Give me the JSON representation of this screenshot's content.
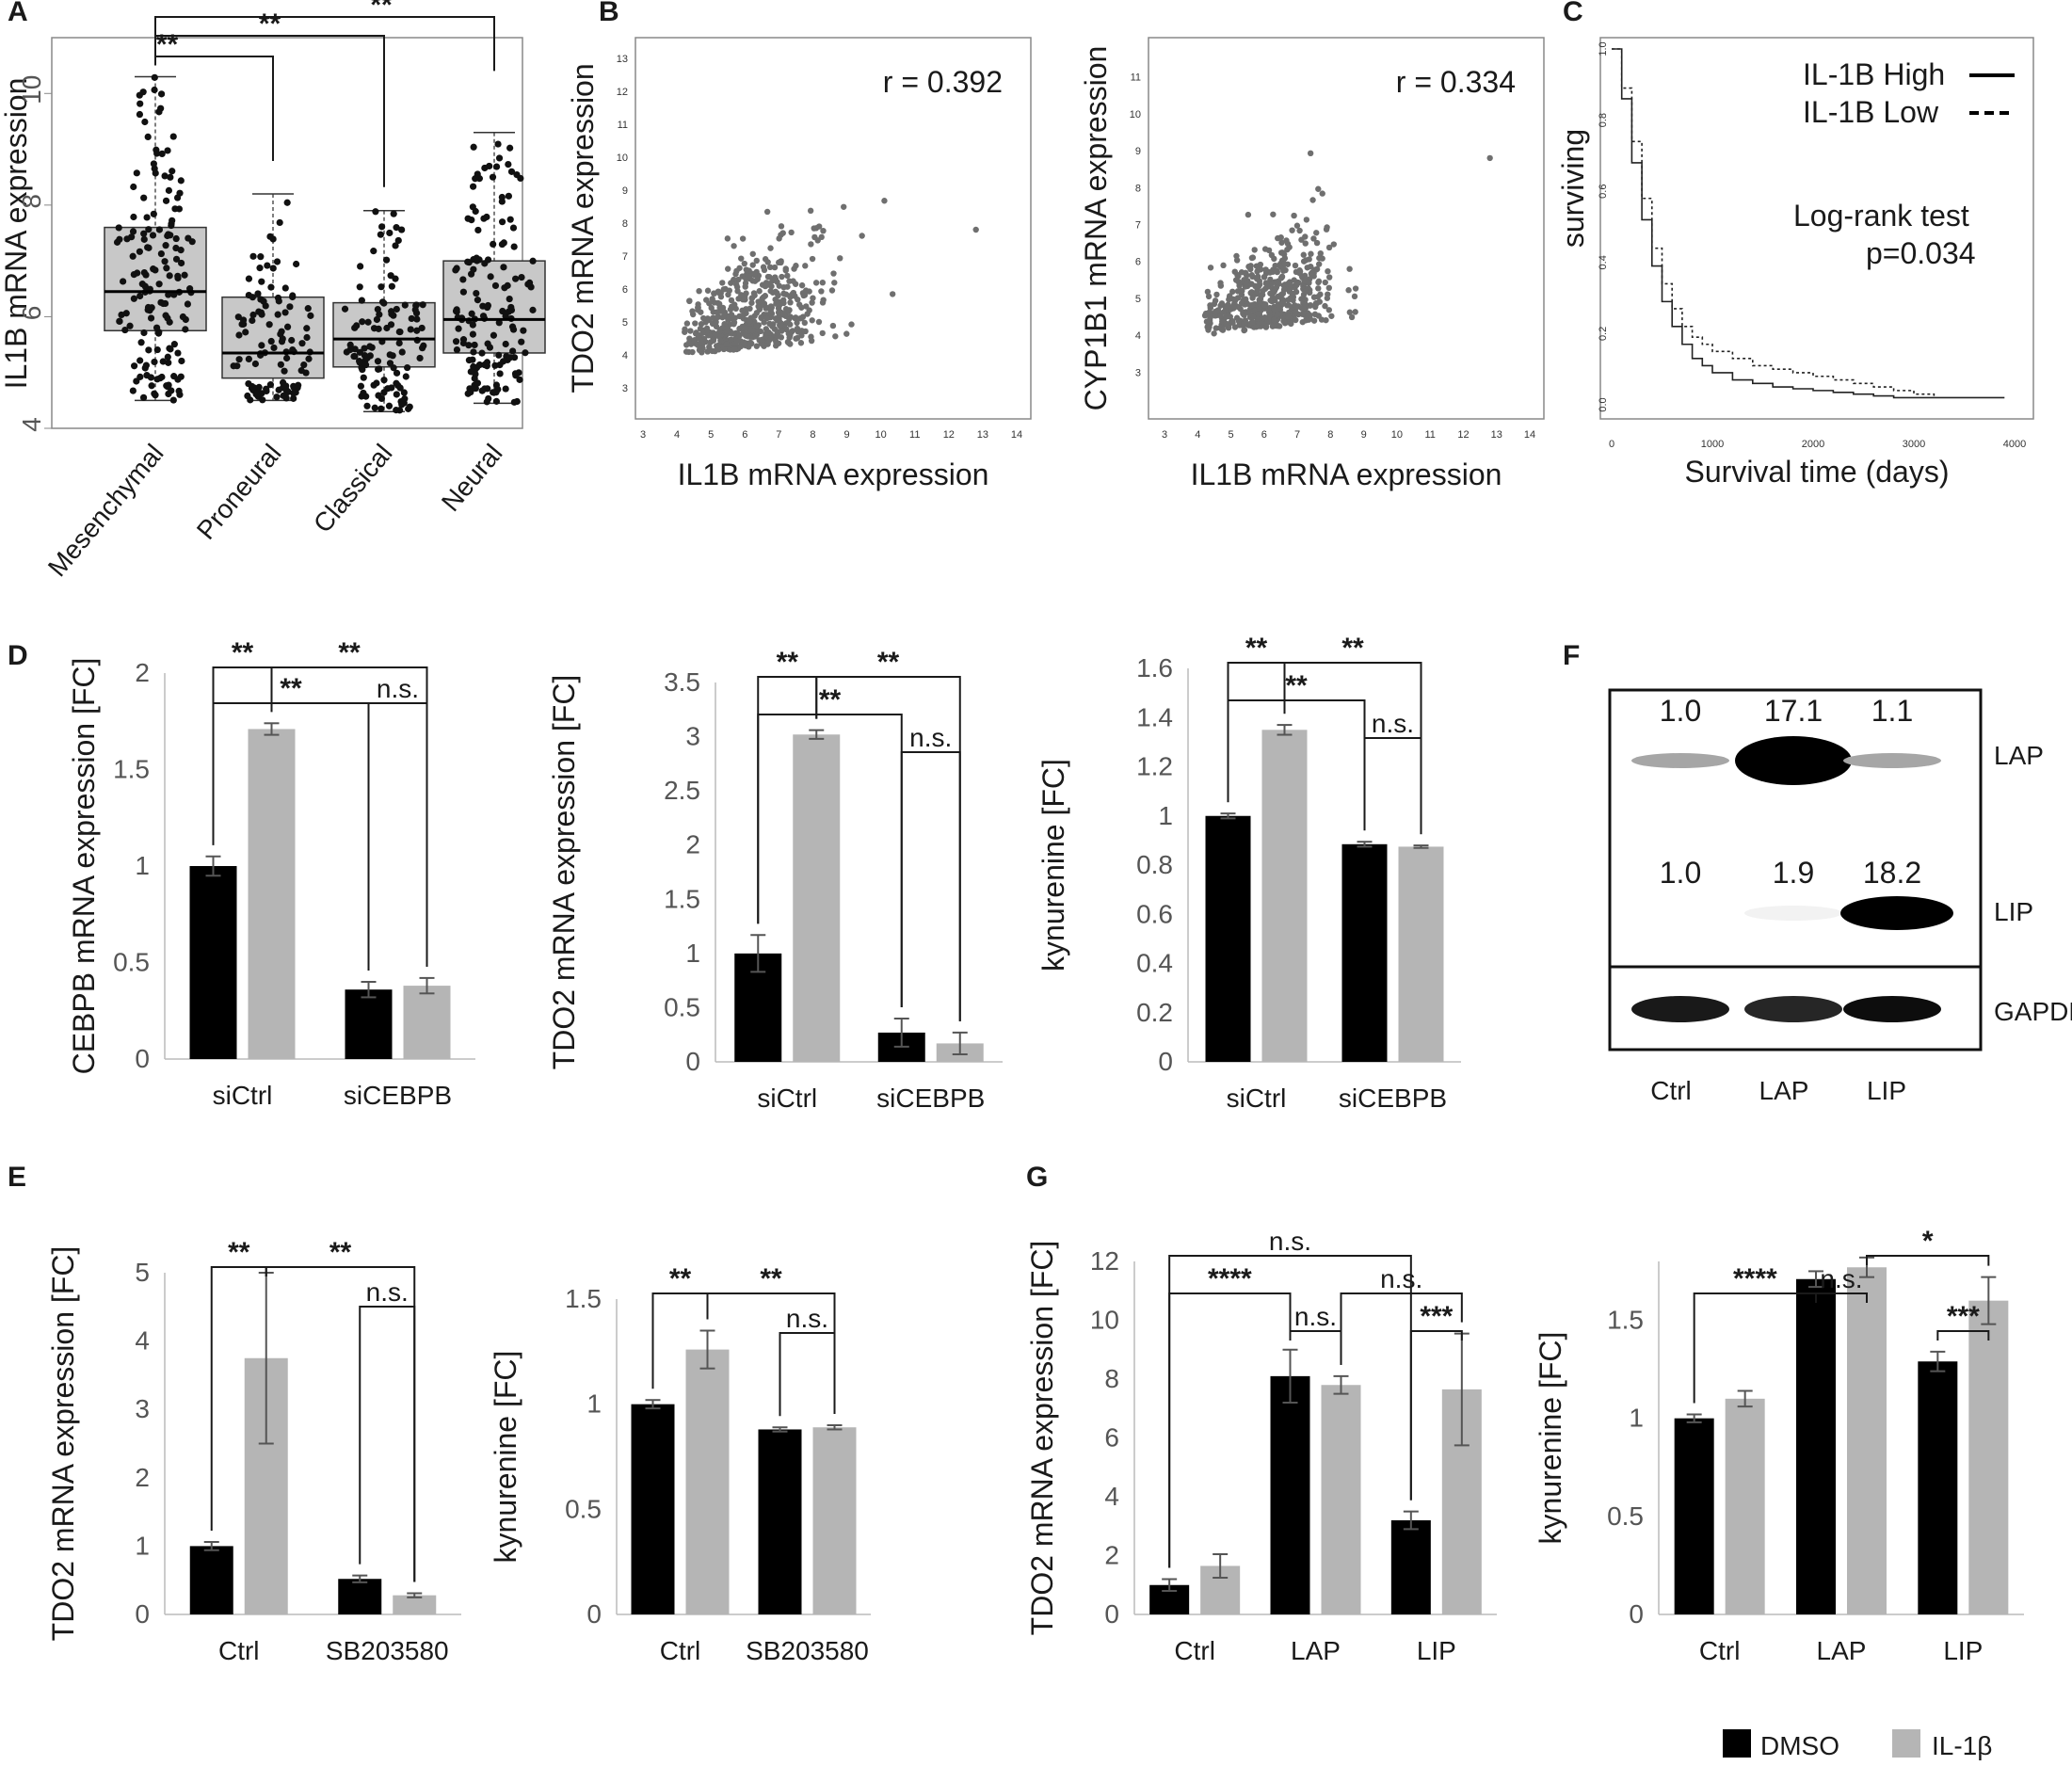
{
  "panel_labels": [
    "A",
    "B",
    "C",
    "D",
    "E",
    "F",
    "G"
  ],
  "colors": {
    "dmso": "#000000",
    "il1b": "#b5b5b5",
    "box": "#c8c8c8",
    "scatter": "#6f6f6f",
    "bracket": "#1a1a1a"
  },
  "legend": {
    "dmso": "DMSO",
    "il1b": "IL-1β"
  },
  "chart_data": [
    {
      "id": "A",
      "type": "box",
      "ylabel": "IL1B mRNA expression",
      "ylim": [
        4,
        11
      ],
      "yticks": [
        4,
        6,
        8,
        10
      ],
      "categories": [
        "Mesenchymal",
        "Proneural",
        "Classical",
        "Neural"
      ],
      "boxes": [
        {
          "category": "Mesenchymal",
          "min": 4.5,
          "q1": 5.75,
          "median": 6.45,
          "q3": 7.6,
          "max": 10.3,
          "n": 155
        },
        {
          "category": "Proneural",
          "min": 4.5,
          "q1": 4.9,
          "median": 5.35,
          "q3": 6.35,
          "max": 8.2,
          "n": 110
        },
        {
          "category": "Classical",
          "min": 4.3,
          "q1": 5.1,
          "median": 5.6,
          "q3": 6.25,
          "max": 7.9,
          "n": 115
        },
        {
          "category": "Neural",
          "min": 4.45,
          "q1": 5.35,
          "median": 5.95,
          "q3": 7.0,
          "max": 9.3,
          "n": 150
        }
      ],
      "significance": [
        {
          "from": "Mesenchymal",
          "to": "Neural",
          "label": "**"
        },
        {
          "from": "Mesenchymal",
          "to": "Classical",
          "label": "**"
        },
        {
          "from": "Mesenchymal",
          "to": "Proneural",
          "label": "**"
        }
      ]
    },
    {
      "id": "B1",
      "type": "scatter",
      "annotation": "r = 0.392",
      "xlabel": "IL1B mRNA expression",
      "ylabel": "TDO2 mRNA expression",
      "xlim": [
        3,
        14
      ],
      "ylim": [
        3,
        13
      ],
      "xticks": [
        3,
        4,
        5,
        6,
        7,
        8,
        9,
        10,
        11,
        12,
        13,
        14
      ],
      "yticks": [
        3,
        4,
        5,
        6,
        7,
        8,
        9,
        10,
        11,
        12,
        13
      ],
      "n_points": 520,
      "seed": 7,
      "r": 0.392,
      "x_mean": 6.2,
      "x_sd": 1.3,
      "y_base": 4.0,
      "y_spread": 3.6
    },
    {
      "id": "B2",
      "type": "scatter",
      "annotation": "r = 0.334",
      "xlabel": "IL1B mRNA expression",
      "ylabel": "CYP1B1 mRNA expression",
      "xlim": [
        3,
        14
      ],
      "ylim": [
        2.5,
        11.5
      ],
      "xticks": [
        3,
        4,
        5,
        6,
        7,
        8,
        9,
        10,
        11,
        12,
        13,
        14
      ],
      "yticks": [
        3,
        4,
        5,
        6,
        7,
        8,
        9,
        10,
        11
      ],
      "n_points": 520,
      "seed": 13,
      "r": 0.334,
      "x_mean": 6.3,
      "x_sd": 1.2,
      "y_base": 4.0,
      "y_spread": 3.2
    },
    {
      "id": "C",
      "type": "line",
      "xlabel": "Survival time (days)",
      "ylabel": "surviving",
      "xlim": [
        0,
        4000
      ],
      "ylim": [
        0,
        1.0
      ],
      "xticks": [
        0,
        1000,
        2000,
        3000,
        4000
      ],
      "yticks": [
        0.0,
        0.2,
        0.4,
        0.6,
        0.8,
        1.0
      ],
      "legend": [
        "IL-1B High",
        "IL-1B Low"
      ],
      "annotation_title": "Log-rank test",
      "annotation_p": "p=0.034",
      "series": [
        {
          "name": "IL-1B High",
          "style": "solid",
          "x": [
            0,
            100,
            200,
            300,
            400,
            500,
            600,
            700,
            800,
            900,
            1000,
            1200,
            1400,
            1600,
            1800,
            2000,
            2200,
            2400,
            2600,
            2800,
            3000,
            3300,
            3600,
            3900
          ],
          "y": [
            1.0,
            0.86,
            0.68,
            0.52,
            0.39,
            0.29,
            0.22,
            0.17,
            0.13,
            0.11,
            0.09,
            0.07,
            0.06,
            0.05,
            0.045,
            0.04,
            0.035,
            0.03,
            0.025,
            0.02,
            0.02,
            0.02,
            0.02,
            0.02
          ]
        },
        {
          "name": "IL-1B Low",
          "style": "dashed",
          "x": [
            0,
            100,
            200,
            300,
            400,
            500,
            600,
            700,
            800,
            900,
            1000,
            1200,
            1400,
            1600,
            1800,
            2000,
            2200,
            2400,
            2600,
            2800,
            3000,
            3200
          ],
          "y": [
            1.0,
            0.89,
            0.74,
            0.58,
            0.44,
            0.34,
            0.27,
            0.22,
            0.19,
            0.17,
            0.15,
            0.13,
            0.11,
            0.1,
            0.09,
            0.08,
            0.07,
            0.06,
            0.05,
            0.04,
            0.03,
            0.02
          ]
        }
      ]
    },
    {
      "id": "D1",
      "type": "bar",
      "ylabel": "CEBPB mRNA expression [FC]",
      "ylim": [
        0,
        2
      ],
      "yticks": [
        0,
        0.5,
        1,
        1.5,
        2
      ],
      "ytick_labels": [
        "0",
        "0.5",
        "1",
        "1.5",
        "2"
      ],
      "categories": [
        "siCtrl",
        "siCEBPB"
      ],
      "series": [
        {
          "name": "DMSO",
          "values": [
            1.0,
            0.36
          ],
          "errors": [
            0.05,
            0.04
          ]
        },
        {
          "name": "IL-1β",
          "values": [
            1.71,
            0.38
          ],
          "errors": [
            0.03,
            0.04
          ]
        }
      ],
      "significance": [
        {
          "a": [
            0,
            0
          ],
          "b": [
            0,
            1
          ],
          "label": "**",
          "level": 1
        },
        {
          "a": [
            0,
            0
          ],
          "b": [
            1,
            0
          ],
          "label": "**",
          "level": 0
        },
        {
          "a": [
            0,
            1
          ],
          "b": [
            1,
            1
          ],
          "label": "**",
          "level": 1
        },
        {
          "a": [
            1,
            0
          ],
          "b": [
            1,
            1
          ],
          "label": "n.s.",
          "level": 0
        }
      ]
    },
    {
      "id": "D2",
      "type": "bar",
      "ylabel": "TDO2 mRNA expression [FC]",
      "ylim": [
        0,
        3.5
      ],
      "yticks": [
        0,
        0.5,
        1,
        1.5,
        2,
        2.5,
        3,
        3.5
      ],
      "ytick_labels": [
        "0",
        "0.5",
        "1",
        "1.5",
        "2",
        "2.5",
        "3",
        "3.5"
      ],
      "categories": [
        "siCtrl",
        "siCEBPB"
      ],
      "series": [
        {
          "name": "DMSO",
          "values": [
            1.0,
            0.27
          ],
          "errors": [
            0.17,
            0.13
          ]
        },
        {
          "name": "IL-1β",
          "values": [
            3.02,
            0.17
          ],
          "errors": [
            0.04,
            0.1
          ]
        }
      ],
      "significance": [
        {
          "a": [
            0,
            0
          ],
          "b": [
            0,
            1
          ],
          "label": "**",
          "level": 2
        },
        {
          "a": [
            0,
            0
          ],
          "b": [
            1,
            0
          ],
          "label": "**",
          "level": 1
        },
        {
          "a": [
            0,
            1
          ],
          "b": [
            1,
            1
          ],
          "label": "**",
          "level": 2
        },
        {
          "a": [
            1,
            0
          ],
          "b": [
            1,
            1
          ],
          "label": "n.s.",
          "level": 0
        }
      ]
    },
    {
      "id": "D3",
      "type": "bar",
      "ylabel": "kynurenine [FC]",
      "ylim": [
        0,
        1.6
      ],
      "yticks": [
        0,
        0.2,
        0.4,
        0.6,
        0.8,
        1,
        1.2,
        1.4,
        1.6
      ],
      "ytick_labels": [
        "0",
        "0.2",
        "0.4",
        "0.6",
        "0.8",
        "1",
        "1.2",
        "1.4",
        "1.6"
      ],
      "categories": [
        "siCtrl",
        "siCEBPB"
      ],
      "series": [
        {
          "name": "DMSO",
          "values": [
            1.0,
            0.885
          ],
          "errors": [
            0.01,
            0.01
          ]
        },
        {
          "name": "IL-1β",
          "values": [
            1.35,
            0.875
          ],
          "errors": [
            0.02,
            0.005
          ]
        }
      ],
      "significance": [
        {
          "a": [
            0,
            0
          ],
          "b": [
            0,
            1
          ],
          "label": "**",
          "level": 2
        },
        {
          "a": [
            0,
            0
          ],
          "b": [
            1,
            0
          ],
          "label": "**",
          "level": 1
        },
        {
          "a": [
            0,
            1
          ],
          "b": [
            1,
            1
          ],
          "label": "**",
          "level": 2
        },
        {
          "a": [
            1,
            0
          ],
          "b": [
            1,
            1
          ],
          "label": "n.s.",
          "level": 0
        }
      ]
    },
    {
      "id": "E1",
      "type": "bar",
      "ylabel": "TDO2 mRNA expression [FC]",
      "ylim": [
        0,
        5
      ],
      "yticks": [
        0,
        1,
        2,
        3,
        4,
        5
      ],
      "ytick_labels": [
        "0",
        "1",
        "2",
        "3",
        "4",
        "5"
      ],
      "categories": [
        "Ctrl",
        "SB203580"
      ],
      "series": [
        {
          "name": "DMSO",
          "values": [
            1.0,
            0.52
          ],
          "errors": [
            0.06,
            0.05
          ]
        },
        {
          "name": "IL-1β",
          "values": [
            3.75,
            0.28
          ],
          "errors": [
            1.25,
            0.03
          ]
        }
      ],
      "significance": [
        {
          "a": [
            0,
            0
          ],
          "b": [
            0,
            1
          ],
          "label": "**",
          "level": 1
        },
        {
          "a": [
            0,
            1
          ],
          "b": [
            1,
            1
          ],
          "label": "**",
          "level": 1
        },
        {
          "a": [
            1,
            0
          ],
          "b": [
            1,
            1
          ],
          "label": "n.s.",
          "level": 0
        }
      ]
    },
    {
      "id": "E2",
      "type": "bar",
      "ylabel": "kynurenine [FC]",
      "ylim": [
        0,
        1.5
      ],
      "yticks": [
        0,
        0.5,
        1,
        1.5
      ],
      "ytick_labels": [
        "0",
        "0.5",
        "1",
        "1.5"
      ],
      "categories": [
        "Ctrl",
        "SB203580"
      ],
      "series": [
        {
          "name": "DMSO",
          "values": [
            1.0,
            0.88
          ],
          "errors": [
            0.02,
            0.01
          ]
        },
        {
          "name": "IL-1β",
          "values": [
            1.26,
            0.89
          ],
          "errors": [
            0.09,
            0.01
          ]
        }
      ],
      "significance": [
        {
          "a": [
            0,
            0
          ],
          "b": [
            0,
            1
          ],
          "label": "**",
          "level": 1
        },
        {
          "a": [
            0,
            1
          ],
          "b": [
            1,
            1
          ],
          "label": "**",
          "level": 1
        },
        {
          "a": [
            1,
            0
          ],
          "b": [
            1,
            1
          ],
          "label": "n.s.",
          "level": 0
        }
      ]
    },
    {
      "id": "G1",
      "type": "bar",
      "ylabel": "TDO2 mRNA expression [FC]",
      "ylim": [
        0,
        12
      ],
      "yticks": [
        0,
        2,
        4,
        6,
        8,
        10,
        12
      ],
      "ytick_labels": [
        "0",
        "2",
        "4",
        "6",
        "8",
        "10",
        "12"
      ],
      "categories": [
        "Ctrl",
        "LAP",
        "LIP"
      ],
      "series": [
        {
          "name": "DMSO",
          "values": [
            1.0,
            8.1,
            3.2
          ],
          "errors": [
            0.2,
            0.9,
            0.3
          ]
        },
        {
          "name": "IL-1β",
          "values": [
            1.65,
            7.8,
            7.65
          ],
          "errors": [
            0.4,
            0.3,
            1.9
          ]
        }
      ],
      "significance": [
        {
          "a": [
            0,
            0
          ],
          "b": [
            2,
            0
          ],
          "label": "n.s.",
          "level": 3
        },
        {
          "a": [
            0,
            0
          ],
          "b": [
            1,
            0
          ],
          "label": "****",
          "level": 2
        },
        {
          "a": [
            1,
            1
          ],
          "b": [
            2,
            1
          ],
          "label": "n.s.",
          "level": 2
        },
        {
          "a": [
            1,
            0
          ],
          "b": [
            1,
            1
          ],
          "label": "n.s.",
          "level": 1
        },
        {
          "a": [
            2,
            0
          ],
          "b": [
            2,
            1
          ],
          "label": "***",
          "level": 1
        }
      ]
    },
    {
      "id": "G2",
      "type": "bar",
      "ylabel": "kynurenine [FC]",
      "ylim": [
        0,
        1.8
      ],
      "yticks": [
        0,
        0.5,
        1,
        1.5
      ],
      "ytick_labels": [
        "0",
        "0.5",
        "1",
        "1.5"
      ],
      "categories": [
        "Ctrl",
        "LAP",
        "LIP"
      ],
      "series": [
        {
          "name": "DMSO",
          "values": [
            1.0,
            1.71,
            1.29
          ],
          "errors": [
            0.02,
            0.04,
            0.05
          ]
        },
        {
          "name": "IL-1β",
          "values": [
            1.1,
            1.77,
            1.6
          ],
          "errors": [
            0.04,
            0.05,
            0.12
          ]
        }
      ],
      "significance": [
        {
          "a": [
            1,
            1
          ],
          "b": [
            2,
            1
          ],
          "label": "*",
          "level": 3
        },
        {
          "a": [
            0,
            0
          ],
          "b": [
            1,
            0
          ],
          "label": "****",
          "level": 2
        },
        {
          "a": [
            1,
            0
          ],
          "b": [
            1,
            1
          ],
          "label": "n.s.",
          "level": 2
        },
        {
          "a": [
            2,
            0
          ],
          "b": [
            2,
            1
          ],
          "label": "***",
          "level": 1
        }
      ]
    }
  ],
  "western_blot": {
    "lanes": [
      "Ctrl",
      "LAP",
      "LIP"
    ],
    "bands": [
      {
        "name": "LAP",
        "quant": [
          "1.0",
          "17.1",
          "1.1"
        ],
        "intensity": [
          0.35,
          1.0,
          0.35
        ]
      },
      {
        "name": "LIP",
        "quant": [
          "1.0",
          "1.9",
          "18.2"
        ],
        "intensity": [
          0.0,
          0.05,
          1.0
        ]
      },
      {
        "name": "GAPDH",
        "quant": [],
        "intensity": [
          0.9,
          0.85,
          0.95
        ]
      }
    ]
  }
}
